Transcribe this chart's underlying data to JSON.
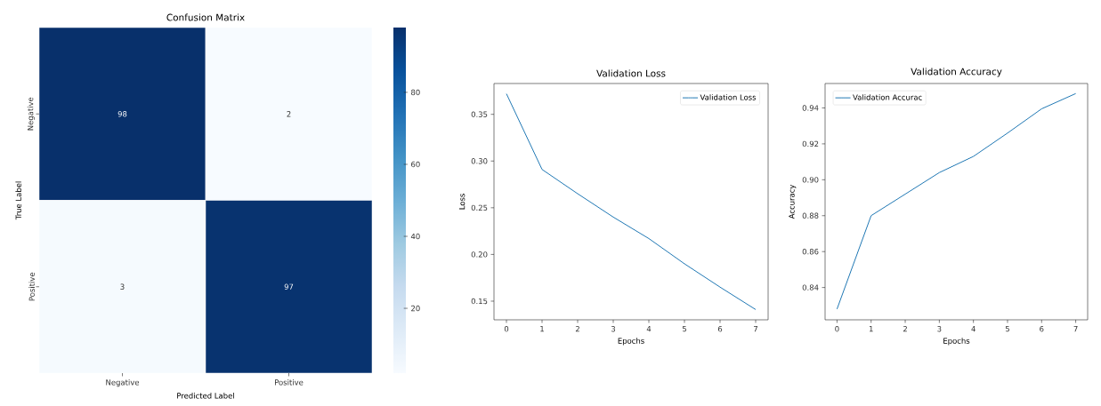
{
  "chart_data": [
    {
      "type": "heatmap",
      "title": "Confusion Matrix",
      "xlabel": "Predicted Label",
      "ylabel": "True Label",
      "categories": [
        "Negative",
        "Positive"
      ],
      "y_categories": [
        "Negative",
        "Positive"
      ],
      "cells": [
        [
          98,
          2
        ],
        [
          3,
          97
        ]
      ],
      "clim": [
        2,
        98
      ],
      "cticks": [
        20,
        40,
        60,
        80
      ],
      "data_labels": true
    },
    {
      "type": "line",
      "title": "Validation Loss",
      "xlabel": "Epochs",
      "ylabel": "Loss",
      "x": [
        0,
        1,
        2,
        3,
        4,
        5,
        6,
        7
      ],
      "series": [
        {
          "name": "Validation Loss",
          "color": "#1f77b4",
          "values": [
            0.372,
            0.291,
            0.265,
            0.24,
            0.217,
            0.19,
            0.165,
            0.141
          ]
        }
      ],
      "xlim": [
        -0.35,
        7.35
      ],
      "ylim": [
        0.13,
        0.383
      ],
      "xticks": [
        0,
        1,
        2,
        3,
        4,
        5,
        6,
        7
      ],
      "yticks": [
        0.15,
        {
          "value": 0.2,
          "label": "0.20"
        },
        0.25,
        {
          "value": 0.3,
          "label": "0.30"
        },
        0.35
      ],
      "legend": "top right"
    },
    {
      "type": "line",
      "title": "Validation Accuracy",
      "xlabel": "Epochs",
      "ylabel": "Accuracy",
      "x": [
        0,
        1,
        2,
        3,
        4,
        5,
        6,
        7
      ],
      "series": [
        {
          "name": "Validation Accurac",
          "color": "#1f77b4",
          "values": [
            0.828,
            0.88,
            0.892,
            0.904,
            0.913,
            0.926,
            0.9395,
            0.948
          ]
        }
      ],
      "xlim": [
        -0.35,
        7.35
      ],
      "ylim": [
        0.822,
        0.9536
      ],
      "xticks": [
        0,
        1,
        2,
        3,
        4,
        5,
        6,
        7
      ],
      "yticks": [
        0.84,
        0.86,
        0.88,
        {
          "value": 0.9,
          "label": "0.90"
        },
        0.92,
        0.94
      ],
      "legend": "top left"
    }
  ]
}
